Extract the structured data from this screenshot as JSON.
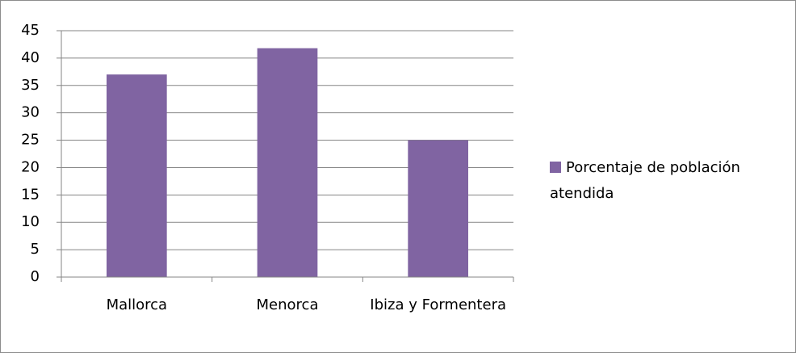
{
  "chart_data": {
    "type": "bar",
    "categories": [
      "Mallorca",
      "Menorca",
      "Ibiza y Formentera"
    ],
    "series": [
      {
        "name": "Porcentaje de población atendida",
        "color": "#8064a2",
        "values": [
          37,
          41.8,
          25
        ]
      }
    ],
    "ylim": [
      0,
      45
    ],
    "yticks": [
      0,
      5,
      10,
      15,
      20,
      25,
      30,
      35,
      40,
      45
    ],
    "grid": true,
    "legend": "right"
  }
}
